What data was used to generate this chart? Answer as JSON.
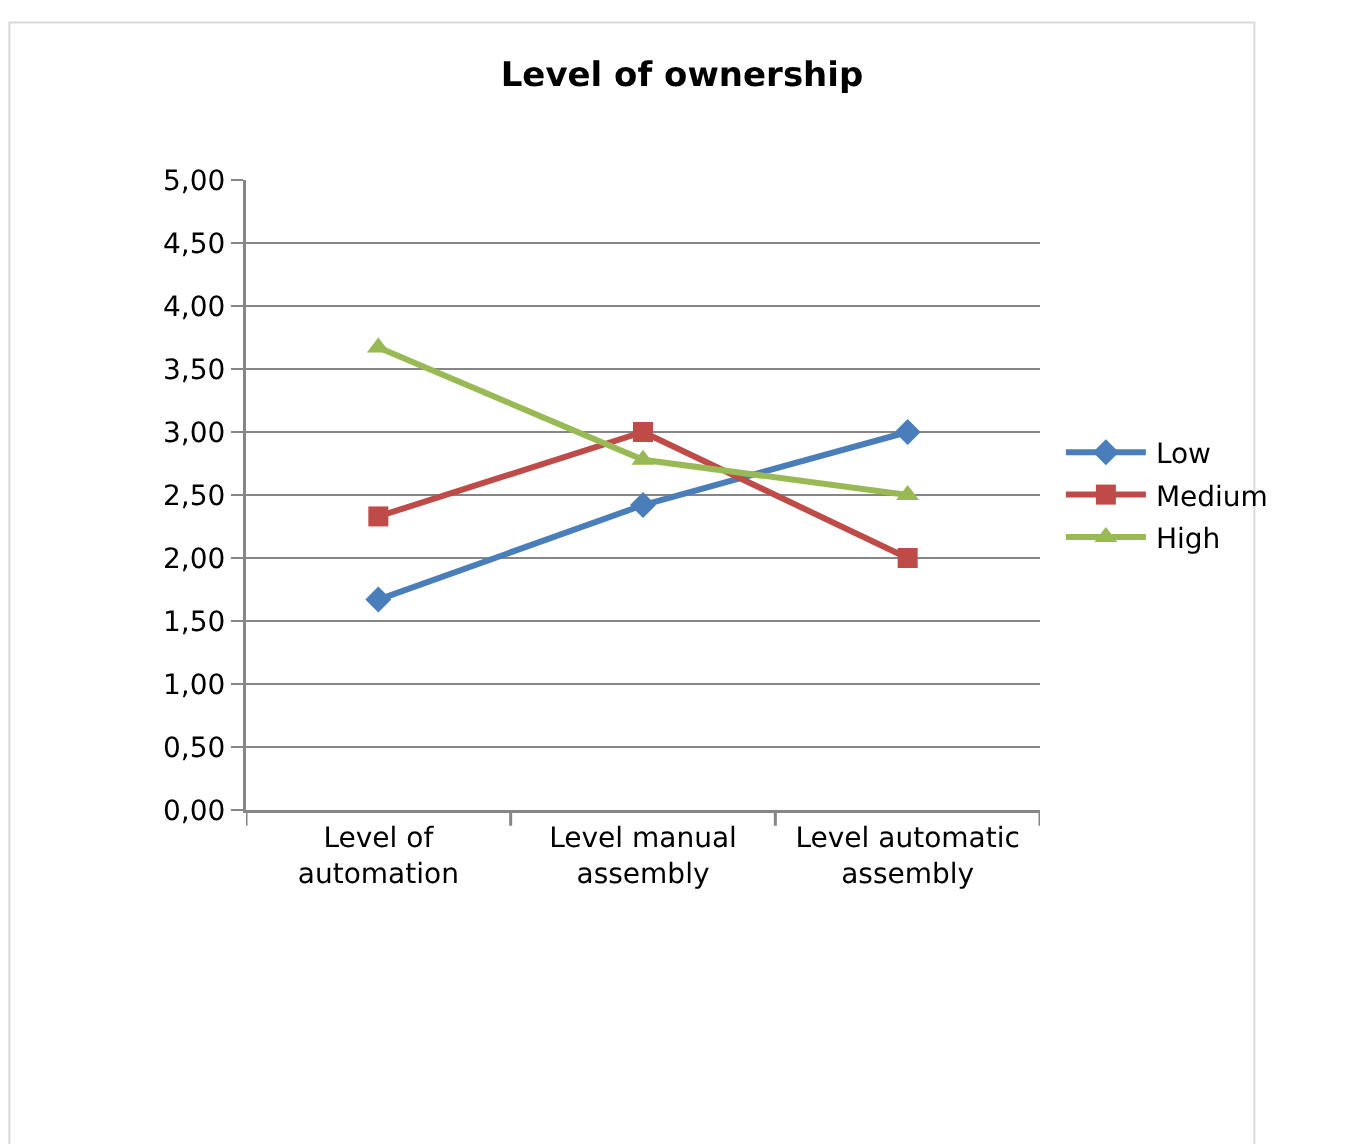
{
  "chart_data": {
    "type": "line",
    "title": "Level of ownership",
    "categories": [
      "Level of automation",
      "Level manual assembly",
      "Level automatic assembly"
    ],
    "series": [
      {
        "name": "Low",
        "color": "#4a7ebb",
        "marker": "diamond",
        "values": [
          1.67,
          2.42,
          3.0
        ]
      },
      {
        "name": "Medium",
        "color": "#be4b48",
        "marker": "square",
        "values": [
          2.33,
          3.0,
          2.0
        ]
      },
      {
        "name": "High",
        "color": "#98b954",
        "marker": "triangle",
        "values": [
          3.67,
          2.78,
          2.5
        ]
      }
    ],
    "ylim": [
      0,
      5
    ],
    "yticks": [
      {
        "value": 0,
        "label": "0,00"
      },
      {
        "value": 0.5,
        "label": "0,50"
      },
      {
        "value": 1,
        "label": "1,00"
      },
      {
        "value": 1.5,
        "label": "1,50"
      },
      {
        "value": 2,
        "label": "2,00"
      },
      {
        "value": 2.5,
        "label": "2,50"
      },
      {
        "value": 3,
        "label": "3,00"
      },
      {
        "value": 3.5,
        "label": "3,50"
      },
      {
        "value": 4,
        "label": "4,00"
      },
      {
        "value": 4.5,
        "label": "4,50"
      },
      {
        "value": 5,
        "label": "5,00"
      }
    ],
    "grid": "y",
    "legend": "right",
    "line_style": "solid"
  }
}
